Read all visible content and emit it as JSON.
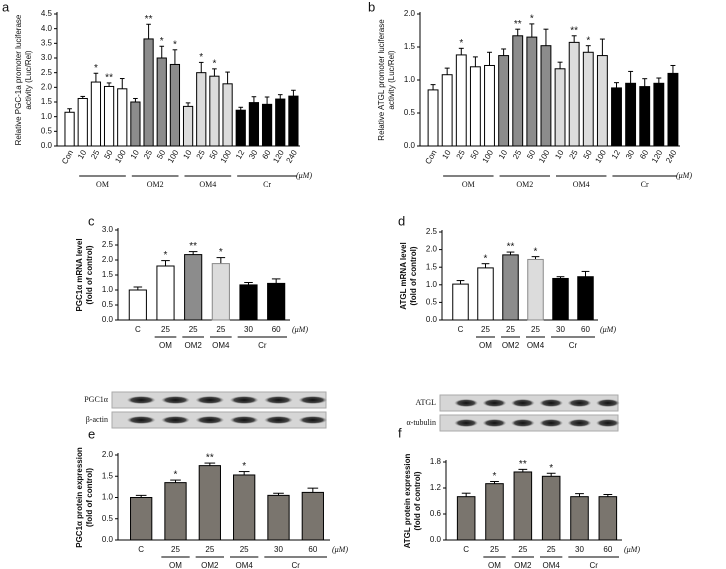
{
  "chart_data": [
    {
      "type": "bar",
      "panel": "a",
      "ylabel": [
        "Relative PGC-1a promoter luciferase",
        "activity (Luc/Rel)"
      ],
      "unit": "(μM)",
      "ylim": [
        0,
        4.5
      ],
      "yticks": [
        {
          "value": 0,
          "label": "0.0"
        },
        0.5,
        {
          "value": 1,
          "label": "1.0"
        },
        1.5,
        {
          "value": 2,
          "label": "2.0"
        },
        2.5,
        {
          "value": 3,
          "label": "3.0"
        },
        3.5,
        {
          "value": 4,
          "label": "4.0"
        },
        4.5
      ],
      "series": [
        {
          "name": null,
          "color": "#ffffff",
          "categories": [
            "Con"
          ],
          "values": [
            1.15
          ],
          "errors": [
            0.12
          ],
          "significance": [
            null
          ]
        },
        {
          "name": "OM",
          "color": "#ffffff",
          "categories": [
            "10",
            "25",
            "50",
            "100"
          ],
          "values": [
            1.62,
            2.18,
            2.03,
            1.95
          ],
          "errors": [
            0.07,
            0.3,
            0.12,
            0.35
          ],
          "significance": [
            null,
            "*",
            "**",
            null
          ]
        },
        {
          "name": "OM2",
          "color": "#8c8c8c",
          "categories": [
            "10",
            "25",
            "50",
            "100"
          ],
          "values": [
            1.5,
            3.65,
            3.0,
            2.78
          ],
          "errors": [
            0.12,
            0.5,
            0.4,
            0.5
          ],
          "significance": [
            null,
            "**",
            "*",
            "*"
          ]
        },
        {
          "name": "OM4",
          "color": "#dcdcdc",
          "categories": [
            "10",
            "25",
            "50",
            "100"
          ],
          "values": [
            1.35,
            2.5,
            2.38,
            2.12
          ],
          "errors": [
            0.12,
            0.35,
            0.25,
            0.4
          ],
          "significance": [
            null,
            "*",
            "*",
            null
          ]
        },
        {
          "name": "Cr",
          "color": "#000000",
          "categories": [
            "12",
            "30",
            "60",
            "120",
            "240"
          ],
          "values": [
            1.22,
            1.48,
            1.42,
            1.6,
            1.7
          ],
          "errors": [
            0.1,
            0.2,
            0.25,
            0.15,
            0.2
          ],
          "significance": [
            null,
            null,
            null,
            null,
            null
          ]
        }
      ]
    },
    {
      "type": "bar",
      "panel": "b",
      "ylabel": [
        "Relative ATGL promoter luciferase",
        "activity (Luc/Rel)"
      ],
      "unit": "(μM)",
      "ylim": [
        0,
        2.0
      ],
      "yticks": [
        {
          "value": 0,
          "label": "0.0"
        },
        0.5,
        {
          "value": 1,
          "label": "1.0"
        },
        1.5,
        {
          "value": 2,
          "label": "2.0"
        }
      ],
      "series": [
        {
          "name": null,
          "color": "#ffffff",
          "categories": [
            "Con"
          ],
          "values": [
            0.85
          ],
          "errors": [
            0.08
          ],
          "significance": [
            null
          ]
        },
        {
          "name": "OM",
          "color": "#ffffff",
          "categories": [
            "10",
            "25",
            "50",
            "100"
          ],
          "values": [
            1.08,
            1.38,
            1.2,
            1.22
          ],
          "errors": [
            0.1,
            0.1,
            0.15,
            0.2
          ],
          "significance": [
            null,
            "*",
            null,
            null
          ]
        },
        {
          "name": "OM2",
          "color": "#8c8c8c",
          "categories": [
            "10",
            "25",
            "50",
            "100"
          ],
          "values": [
            1.37,
            1.67,
            1.65,
            1.52
          ],
          "errors": [
            0.1,
            0.1,
            0.2,
            0.25
          ],
          "significance": [
            null,
            "**",
            "*",
            null
          ]
        },
        {
          "name": "OM4",
          "color": "#dcdcdc",
          "categories": [
            "10",
            "25",
            "50",
            "100"
          ],
          "values": [
            1.17,
            1.57,
            1.42,
            1.37
          ],
          "errors": [
            0.1,
            0.1,
            0.1,
            0.25
          ],
          "significance": [
            null,
            "**",
            "*",
            null
          ]
        },
        {
          "name": "Cr",
          "color": "#000000",
          "categories": [
            "12",
            "30",
            "60",
            "120",
            "240"
          ],
          "values": [
            0.88,
            0.95,
            0.9,
            0.95,
            1.1
          ],
          "errors": [
            0.08,
            0.18,
            0.12,
            0.08,
            0.12
          ],
          "significance": [
            null,
            null,
            null,
            null,
            null
          ]
        }
      ]
    },
    {
      "type": "bar",
      "panel": "c",
      "ylabel": [
        "PGC1α  mRNA level",
        "(fold of control)"
      ],
      "unit": "(μM)",
      "ylim": [
        0,
        3.0
      ],
      "yticks": [
        {
          "value": 0,
          "label": "0.0"
        },
        0.5,
        {
          "value": 1,
          "label": "1.0"
        },
        1.5,
        {
          "value": 2,
          "label": "2.0"
        },
        2.5,
        {
          "value": 3,
          "label": "3.0"
        }
      ],
      "series": [
        {
          "name": null,
          "color": "#ffffff",
          "categories": [
            "C"
          ],
          "values": [
            1.0
          ],
          "errors": [
            0.1
          ],
          "significance": [
            null
          ]
        },
        {
          "name": "OM",
          "color": "#ffffff",
          "categories": [
            "25"
          ],
          "values": [
            1.8
          ],
          "errors": [
            0.18
          ],
          "significance": [
            "*"
          ]
        },
        {
          "name": "OM2",
          "color": "#8c8c8c",
          "categories": [
            "25"
          ],
          "values": [
            2.18
          ],
          "errors": [
            0.1
          ],
          "significance": [
            "**"
          ]
        },
        {
          "name": "OM4",
          "color": "#dcdcdc",
          "categories": [
            "25"
          ],
          "values": [
            1.88
          ],
          "errors": [
            0.2
          ],
          "significance": [
            "*"
          ]
        },
        {
          "name": "Cr",
          "color": "#000000",
          "categories": [
            "30",
            "60"
          ],
          "values": [
            1.17,
            1.22
          ],
          "errors": [
            0.08,
            0.15
          ],
          "significance": [
            null,
            null
          ]
        }
      ]
    },
    {
      "type": "bar",
      "panel": "d",
      "ylabel": [
        "ATGL mRNA level",
        "(fold of control)"
      ],
      "unit": "(μM)",
      "ylim": [
        0,
        2.5
      ],
      "yticks": [
        {
          "value": 0,
          "label": "0.0"
        },
        0.5,
        {
          "value": 1,
          "label": "1.0"
        },
        1.5,
        {
          "value": 2,
          "label": "2.0"
        },
        2.5
      ],
      "series": [
        {
          "name": null,
          "color": "#ffffff",
          "categories": [
            "C"
          ],
          "values": [
            1.02
          ],
          "errors": [
            0.1
          ],
          "significance": [
            null
          ]
        },
        {
          "name": "OM",
          "color": "#ffffff",
          "categories": [
            "25"
          ],
          "values": [
            1.48
          ],
          "errors": [
            0.12
          ],
          "significance": [
            "*"
          ]
        },
        {
          "name": "OM2",
          "color": "#8c8c8c",
          "categories": [
            "25"
          ],
          "values": [
            1.85
          ],
          "errors": [
            0.08
          ],
          "significance": [
            "**"
          ]
        },
        {
          "name": "OM4",
          "color": "#dcdcdc",
          "categories": [
            "25"
          ],
          "values": [
            1.72
          ],
          "errors": [
            0.08
          ],
          "significance": [
            "*"
          ]
        },
        {
          "name": "Cr",
          "color": "#000000",
          "categories": [
            "30",
            "60"
          ],
          "values": [
            1.18,
            1.23
          ],
          "errors": [
            0.05,
            0.15
          ],
          "significance": [
            null,
            null
          ]
        }
      ]
    },
    {
      "type": "bar",
      "panel": "e",
      "ylabel": [
        "PGC1α  protein expression",
        "(fold of control)"
      ],
      "unit": "(μM)",
      "blot_labels": [
        "PGC1α",
        "β-actin"
      ],
      "ylim": [
        0,
        2.0
      ],
      "yticks": [
        {
          "value": 0,
          "label": "0.0"
        },
        0.5,
        {
          "value": 1,
          "label": "1.0"
        },
        1.5,
        {
          "value": 2,
          "label": "2.0"
        }
      ],
      "series": [
        {
          "name": null,
          "color": "#7a756e",
          "categories": [
            "C"
          ],
          "values": [
            1.0
          ],
          "errors": [
            0.05
          ],
          "significance": [
            null
          ]
        },
        {
          "name": "OM",
          "color": "#7a756e",
          "categories": [
            "25"
          ],
          "values": [
            1.35
          ],
          "errors": [
            0.06
          ],
          "significance": [
            "*"
          ]
        },
        {
          "name": "OM2",
          "color": "#7a756e",
          "categories": [
            "25"
          ],
          "values": [
            1.75
          ],
          "errors": [
            0.06
          ],
          "significance": [
            "**"
          ]
        },
        {
          "name": "OM4",
          "color": "#7a756e",
          "categories": [
            "25"
          ],
          "values": [
            1.53
          ],
          "errors": [
            0.08
          ],
          "significance": [
            "*"
          ]
        },
        {
          "name": "Cr",
          "color": "#7a756e",
          "categories": [
            "30",
            "60"
          ],
          "values": [
            1.05,
            1.12
          ],
          "errors": [
            0.05,
            0.1
          ],
          "significance": [
            null,
            null
          ]
        }
      ]
    },
    {
      "type": "bar",
      "panel": "f",
      "ylabel": [
        "ATGL protein expression",
        "(fold of control)"
      ],
      "unit": "(μM)",
      "blot_labels": [
        "ATGL",
        "α-tubulin"
      ],
      "ylim": [
        0,
        1.8
      ],
      "yticks": [
        {
          "value": 0,
          "label": "0.0"
        },
        0.6,
        1.2,
        1.8
      ],
      "series": [
        {
          "name": null,
          "color": "#7a756e",
          "categories": [
            "C"
          ],
          "values": [
            1.0
          ],
          "errors": [
            0.08
          ],
          "significance": [
            null
          ]
        },
        {
          "name": "OM",
          "color": "#7a756e",
          "categories": [
            "25"
          ],
          "values": [
            1.3
          ],
          "errors": [
            0.05
          ],
          "significance": [
            "*"
          ]
        },
        {
          "name": "OM2",
          "color": "#7a756e",
          "categories": [
            "25"
          ],
          "values": [
            1.57
          ],
          "errors": [
            0.06
          ],
          "significance": [
            "**"
          ]
        },
        {
          "name": "OM4",
          "color": "#7a756e",
          "categories": [
            "25"
          ],
          "values": [
            1.47
          ],
          "errors": [
            0.07
          ],
          "significance": [
            "*"
          ]
        },
        {
          "name": "Cr",
          "color": "#7a756e",
          "categories": [
            "30",
            "60"
          ],
          "values": [
            1.0,
            1.0
          ],
          "errors": [
            0.07,
            0.05
          ],
          "significance": [
            null,
            null
          ]
        }
      ]
    }
  ]
}
